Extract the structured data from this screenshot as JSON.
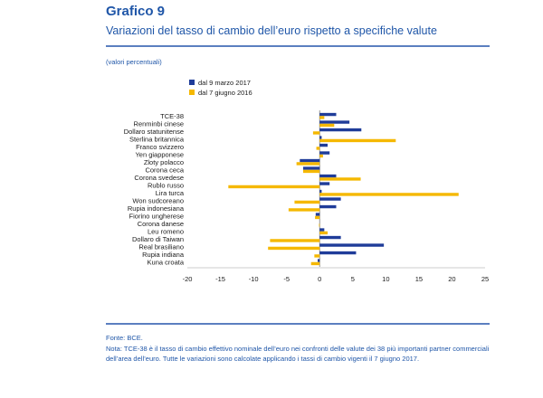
{
  "header": {
    "title": "Grafico 9",
    "subtitle": "Variazioni del tasso di cambio dell’euro rispetto a specifiche valute",
    "unit": "(valori percentuali)"
  },
  "footer": {
    "source": "Fonte: BCE.",
    "note": "Nota: TCE-38 è il tasso di cambio effettivo nominale dell’euro nei confronti delle valute dei 38 più importanti partner commerciali dell’area dell’euro. Tutte le variazioni sono calcolate applicando i tassi di cambio vigenti il 7 giugno 2017."
  },
  "chart_data": {
    "type": "bar",
    "orientation": "horizontal",
    "categories": [
      "TCE-38",
      "Renminbi cinese",
      "Dollaro statunitense",
      "Sterlina britannica",
      "Franco svizzero",
      "Yen giapponese",
      "Zloty polacco",
      "Corona ceca",
      "Corona svedese",
      "Rublo russo",
      "Lira turca",
      "Won sudcoreano",
      "Rupia indonesiana",
      "Fiorino ungherese",
      "Corona danese",
      "Leu romeno",
      "Dollaro di Taiwan",
      "Real brasiliano",
      "Rupia indiana",
      "Kuna croata"
    ],
    "series": [
      {
        "name": "dal 9 marzo 2017",
        "color": "#1f3c99",
        "values": [
          2.5,
          4.5,
          6.3,
          0.3,
          1.2,
          1.5,
          -3.0,
          -2.5,
          2.5,
          1.5,
          0.3,
          3.2,
          2.5,
          -0.6,
          0.0,
          0.7,
          3.2,
          9.7,
          5.5,
          -0.3
        ]
      },
      {
        "name": "dal 7 giugno 2016",
        "color": "#f5b800",
        "values": [
          0.7,
          2.2,
          -1.0,
          11.5,
          -0.5,
          0.5,
          -3.5,
          -2.5,
          6.2,
          -13.8,
          21.0,
          -3.8,
          -4.7,
          -0.7,
          -0.1,
          1.2,
          -7.5,
          -7.8,
          -0.8,
          -1.3
        ]
      }
    ],
    "xticks": [
      -20,
      -15,
      -10,
      -5,
      0,
      5,
      10,
      15,
      20,
      25
    ],
    "xlim": [
      -20,
      25
    ],
    "legend_position": "top-left",
    "grid": false
  }
}
